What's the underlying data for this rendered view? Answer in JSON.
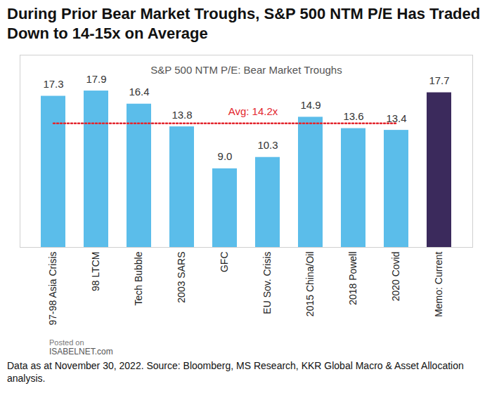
{
  "chart_data": {
    "type": "bar",
    "title": "During Prior Bear Market Troughs, S&P 500 NTM P/E Has Traded Down to 14-15x on Average",
    "subtitle": "S&P 500 NTM P/E: Bear Market Troughs",
    "caption": "Data as at November 30, 2022. Source: Bloomberg, MS Research, KKR Global Macro & Asset Allocation analysis.",
    "watermark": [
      "Posted on",
      "ISABELNET.com"
    ],
    "categories": [
      "97-98 Asia Crisis",
      "98 LTCM",
      "Tech Bubble",
      "2003 SARS",
      "GFC",
      "EU Sov. Crisis",
      "2015 China/Oil",
      "2018 Powell",
      "2020 Covid",
      "Memo: Current"
    ],
    "values": [
      17.3,
      17.9,
      16.4,
      13.8,
      9.0,
      10.3,
      14.9,
      13.6,
      13.4,
      17.7
    ],
    "value_labels": [
      "17.3",
      "17.9",
      "16.4",
      "13.8",
      "9.0",
      "10.3",
      "14.9",
      "13.6",
      "13.4",
      "17.7"
    ],
    "colors": [
      "#5bbdea",
      "#5bbdea",
      "#5bbdea",
      "#5bbdea",
      "#5bbdea",
      "#5bbdea",
      "#5bbdea",
      "#5bbdea",
      "#5bbdea",
      "#3b2a5c"
    ],
    "reference_line": {
      "value": 14.2,
      "label": "Avg: 14.2x",
      "color": "#e3262e",
      "line_style": "dotted"
    },
    "ylim": [
      0,
      22
    ],
    "data_labels": true,
    "tick_labels": "x",
    "grid": false
  }
}
